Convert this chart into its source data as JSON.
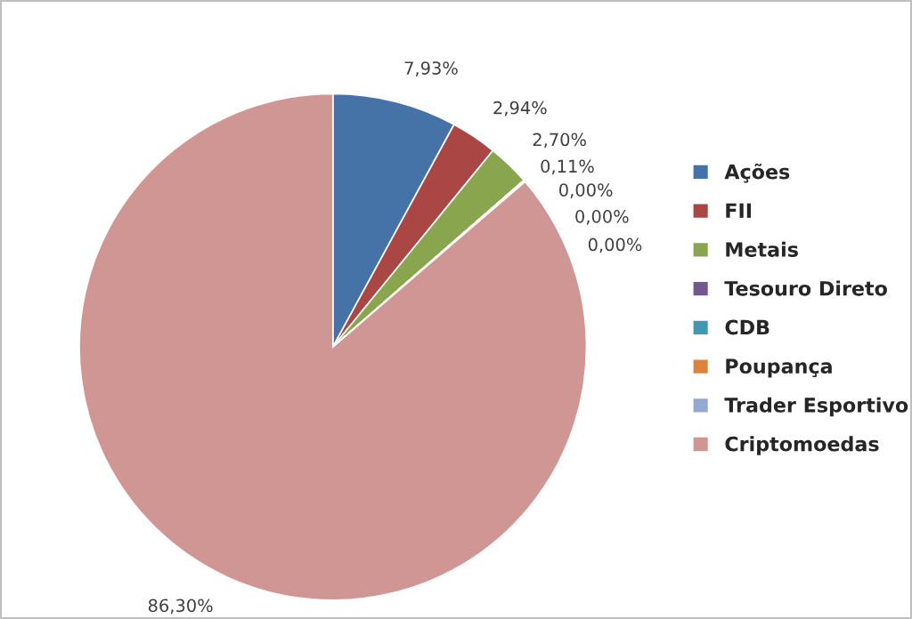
{
  "chart_data": {
    "type": "pie",
    "categories": [
      "Ações",
      "FII",
      "Metais",
      "Tesouro Direto",
      "CDB",
      "Poupança",
      "Trader Esportivo",
      "Criptomoedas"
    ],
    "values": [
      7.93,
      2.94,
      2.7,
      0.0,
      0.0,
      0.0,
      0.11,
      86.3
    ],
    "value_labels": [
      "7,93%",
      "2,94%",
      "2,70%",
      "0,00%",
      "0,00%",
      "0,00%",
      "0,11%",
      "86,30%"
    ],
    "colors": [
      "#4572a7",
      "#aa4643",
      "#89a54e",
      "#71588f",
      "#4198af",
      "#db843d",
      "#93a9cf",
      "#d09694"
    ],
    "legend": "right"
  }
}
